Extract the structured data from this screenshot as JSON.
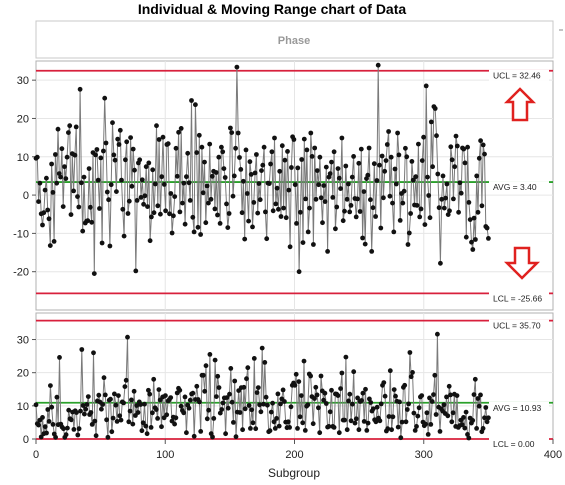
{
  "title": "Individual & Moving Range chart of Data",
  "phase_label": "Phase",
  "xlabel": "Subgroup",
  "colors": {
    "center_line": "#2aa02a",
    "limit_line": "#d8203c",
    "arrow": "#e0211f",
    "data_line": "#7a7a7a",
    "point": "#111111",
    "grid": "#e6e6e6"
  },
  "chart_data": [
    {
      "type": "line",
      "name": "individual",
      "x_range": [
        0,
        350
      ],
      "xlim": [
        0,
        400
      ],
      "ylim": [
        -30,
        35
      ],
      "yticks": [
        -20,
        -10,
        0,
        10,
        20,
        30
      ],
      "y_tick_labels": [
        "-20",
        "-10",
        "0",
        "10",
        "20",
        "30"
      ],
      "ucl": 32.46,
      "avg": 3.4,
      "lcl": -25.66,
      "ucl_label": "UCL = 32.46",
      "avg_label": "AVG = 3.40",
      "lcl_label": "LCL = -25.66",
      "values": [
        9.6,
        9.9,
        -1.7,
        3.1,
        -4.9,
        -7.8,
        -4.6,
        1.3,
        4.4,
        -3.9,
        -6.2,
        -13.2,
        8.1,
        0.7,
        -12.1,
        10.6,
        3.1,
        17.2,
        5.6,
        4.7,
        12.1,
        -3.0,
        7.4,
        4.3,
        9.9,
        16.3,
        18.1,
        -5.1,
        10.8,
        1.1,
        10.4,
        17.8,
        -0.4,
        -3.1,
        27.6,
        3.2,
        -9.4,
        4.7,
        -7.3,
        -6.8,
        -6.7,
        6.9,
        -3.2,
        -7.1,
        11.1,
        -20.5,
        10.5,
        11.9,
        3.9,
        -3.5,
        9.7,
        -12.5,
        11.5,
        25.3,
        13.6,
        0.8,
        -1.2,
        -13.3,
        2.7,
        18.9,
        10.5,
        9.1,
        0.9,
        14.6,
        13.2,
        16.9,
        3.9,
        -3.7,
        -10.7,
        9.2,
        13.9,
        -4.8,
        -1.6,
        15.0,
        2.3,
        12.0,
        6.5,
        -19.8,
        -1.4,
        8.4,
        9.2,
        -0.6,
        4.0,
        -2.4,
        -0.2,
        7.4,
        -3.0,
        8.4,
        -11.9,
        -5.7,
        6.6,
        -4.6,
        2.9,
        18.1,
        -2.8,
        14.5,
        -5.0,
        4.8,
        15.1,
        2.8,
        -4.1,
        13.2,
        13.4,
        -4.9,
        0.4,
        -9.9,
        -5.4,
        -0.4,
        12.2,
        4.9,
        16.4,
        -4.4,
        17.4,
        -2.1,
        3.1,
        -7.6,
        4.8,
        10.9,
        3.2,
        -1.4,
        24.7,
        -5.8,
        -9.6,
        23.6,
        11.1,
        -8.4,
        15.6,
        -10.3,
        12.5,
        0.6,
        8.6,
        -7.2,
        2.4,
        -2.1,
        13.3,
        -1.1,
        4.9,
        6.2,
        -3.6,
        5.9,
        -5.2,
        9.9,
        -7.4,
        12.5,
        11.3,
        6.9,
        4.6,
        -2.3,
        -8.5,
        -4.8,
        17.5,
        16.3,
        -0.3,
        5.0,
        12.2,
        33.4,
        16.2,
        9.8,
        6.7,
        -4.6,
        3.6,
        -11.5,
        11.8,
        0.4,
        -6.8,
        8.7,
        5.4,
        -8.3,
        -1.9,
        5.8,
        10.6,
        -4.7,
        3.0,
        -1.2,
        6.4,
        7.8,
        12.5,
        -4.4,
        -11.4,
        3.1,
        3.0,
        8.1,
        11.3,
        -4.1,
        14.9,
        -2.3,
        1.8,
        -3.7,
        6.2,
        -5.6,
        12.9,
        -3.4,
        9.1,
        -5.9,
        11.4,
        1.3,
        -13.5,
        7.2,
        15.2,
        14.5,
        2.7,
        -7.4,
        7.1,
        -20.0,
        -4.5,
        9.3,
        -12.4,
        14.6,
        -1.0,
        11.8,
        -9.6,
        -3.4,
        16.2,
        10.1,
        -12.9,
        12.3,
        -1.1,
        6.4,
        2.7,
        9.9,
        -0.7,
        -7.2,
        2.5,
        -1.7,
        7.3,
        -14.7,
        4.7,
        5.6,
        8.6,
        -0.6,
        11.3,
        -8.8,
        -3.1,
        6.9,
        4.4,
        1.7,
        14.9,
        -6.7,
        -4.2,
        7.6,
        -1.1,
        2.9,
        -4.4,
        -2.7,
        4.7,
        10.1,
        -0.9,
        -5.7,
        -1.0,
        8.3,
        -4.3,
        12.0,
        -11.2,
        0.9,
        -12.8,
        4.3,
        5.2,
        12.3,
        -1.2,
        -14.7,
        -3.3,
        8.2,
        -5.6,
        3.8,
        33.9,
        7.8,
        -8.6,
        10.2,
        -0.7,
        6.2,
        9.0,
        13.2,
        16.6,
        -0.3,
        9.9,
        -2.1,
        -9.6,
        6.8,
        2.9,
        16.2,
        10.5,
        -6.6,
        0.4,
        -2.1,
        1.0,
        12.2,
        10.0,
        -12.9,
        -9.9,
        -4.8,
        8.8,
        3.9,
        -2.6,
        4.8,
        -2.7,
        13.3,
        -5.7,
        -3.6,
        9.0,
        15.1,
        -7.7,
        28.5,
        4.7,
        -0.1,
        -5.9,
        19.1,
        7.4,
        23.1,
        22.6,
        15.5,
        5.5,
        -3.3,
        -17.8,
        -1.1,
        5.0,
        -3.4,
        -0.8,
        2.9,
        -5.1,
        -4.1,
        12.6,
        9.2,
        -1.0,
        7.4,
        15.4,
        12.8,
        -4.5,
        3.2,
        0.5,
        12.3,
        12.0,
        8.4,
        -11.0,
        12.5,
        -1.9,
        -6.4,
        -12.3,
        -14.2,
        -6.0,
        -11.6,
        5.0,
        -4.5,
        9.6,
        14.2,
        -2.8,
        13.1,
        10.7,
        -8.2,
        -8.6,
        -11.3
      ]
    },
    {
      "type": "line",
      "name": "moving-range",
      "x_range": [
        0,
        350
      ],
      "xlim": [
        0,
        400
      ],
      "ylim": [
        0,
        38
      ],
      "yticks": [
        0,
        10,
        20,
        30
      ],
      "y_tick_labels": [
        "0",
        "10",
        "20",
        "30"
      ],
      "ucl": 35.7,
      "avg": 10.93,
      "lcl": 0.0,
      "ucl_label": "UCL = 35.70",
      "avg_label": "AVG = 10.93",
      "lcl_label": "LCL = 0.00",
      "values": [
        10.3,
        4.6,
        4.2,
        5.7,
        0.6,
        6.5,
        1.6,
        3.7,
        1.8,
        8.9,
        5.3,
        16.1,
        9.6,
        4.4,
        1.5,
        0.5,
        12.6,
        4.3,
        24.6,
        4.5,
        3.6,
        3.1,
        0.5,
        1.3,
        3.3,
        8.7,
        6.1,
        5.8,
        8.1,
        2.9,
        8.5,
        8.0,
        1.2,
        3.1,
        8.4,
        27.0,
        10.1,
        7.5,
        9.0,
        10.4,
        12.8,
        7.4,
        8.0,
        4.4,
        26.0,
        5.4,
        1.0,
        11.5,
        13.2,
        11.1,
        9.0,
        10.4,
        18.5,
        13.3,
        5.8,
        0.5,
        11.7,
        12.0,
        2.2,
        6.3,
        13.6,
        10.2,
        5.3,
        13.1,
        7.0,
        5.7,
        11.2,
        10.9,
        15.8,
        17.7,
        30.7,
        5.2,
        8.4,
        11.8,
        4.5,
        14.4,
        7.1,
        10.1,
        8.0,
        11.2,
        10.4,
        2.5,
        4.9,
        10.5,
        3.9,
        1.6,
        14.7,
        13.5,
        3.5,
        7.9,
        18.0,
        9.4,
        8.9,
        6.2,
        14.9,
        11.8,
        3.7,
        12.7,
        6.4,
        13.1,
        7.3,
        11.5,
        11.9,
        12.5,
        5.4,
        6.6,
        4.5,
        6.4,
        13.9,
        15.3,
        14.7,
        9.9,
        8.6,
        7.9,
        12.7,
        1.9,
        10.2,
        9.3,
        11.7,
        13.6,
        13.8,
        0.8,
        11.9,
        15.9,
        11.9,
        11.2,
        2.3,
        19.2,
        19.2,
        14.4,
        22.1,
        6.1,
        8.7,
        25.5,
        1.6,
        0.6,
        6.2,
        23.8,
        12.8,
        18.9,
        15.5,
        7.8,
        8.9,
        10.9,
        12.4,
        1.6,
        12.5,
        9.3,
        13.5,
        21.3,
        11.1,
        5.0,
        17.5,
        0.7,
        8.1,
        14.6,
        8.0,
        15.5,
        2.8,
        15.6,
        9.1,
        18.2,
        21.5,
        10.1,
        3.2,
        8.8,
        4.9,
        24.3,
        3.1,
        14.0,
        15.5,
        10.3,
        8.2,
        27.4,
        10.5,
        23.1,
        12.6,
        10.2,
        2.2,
        2.5,
        8.1,
        10.8,
        5.2,
        3.2,
        6.2,
        13.6,
        3.9,
        10.6,
        12.1,
        14.8,
        11.3,
        5.1,
        3.4,
        5.2,
        3.5,
        9.7,
        16.2,
        16.9,
        16.2,
        19.5,
        3.2,
        17.3,
        6.7,
        13.1,
        4.9,
        23.5,
        2.6,
        9.9,
        10.3,
        19.6,
        19.0,
        12.8,
        4.6,
        12.2,
        15.6,
        13.3,
        9.4,
        1.9,
        19.0,
        14.5,
        11.7,
        13.8,
        10.7,
        3.6,
        3.8,
        8.2,
        14.7,
        3.8,
        3.5,
        13.6,
        13.5,
        13.1,
        1.9,
        15.2,
        19.9,
        5.7,
        5.7,
        24.7,
        2.8,
        11.5,
        13.5,
        5.5,
        10.5,
        20.3,
        4.8,
        6.1,
        12.4,
        2.8,
        11.3,
        11.6,
        13.8,
        5.3,
        15.0,
        2.6,
        4.8,
        12.1,
        11.0,
        8.4,
        9.1,
        5.8,
        5.2,
        9.6,
        6.3,
        5.5,
        10.6,
        16.2,
        17.0,
        12.9,
        2.4,
        3.1,
        6.8,
        20.6,
        2.8,
        6.7,
        14.9,
        12.9,
        11.4,
        3.6,
        11.2,
        0.4,
        5.1,
        15.6,
        16.2,
        5.2,
        8.9,
        10.6,
        26.1,
        18.8,
        20.1,
        7.8,
        2.6,
        3.8,
        6.9,
        9.4,
        12.7,
        13.1,
        5.1,
        4.0,
        4.5,
        7.9,
        1.4,
        12.4,
        4.4,
        11.3,
        13.4,
        19.2,
        7.4,
        31.6,
        9.6,
        2.3,
        9.1,
        8.4,
        10.3,
        7.7,
        12.7,
        7.0,
        15.9,
        13.3,
        5.2,
        7.9,
        13.5,
        3.8,
        13.1,
        3.5,
        4.0,
        5.7,
        4.3,
        6.5,
        3.3,
        8.1,
        1.4,
        0.3,
        6.3,
        4.8,
        5.6,
        13.4,
        18.0,
        3.2,
        12.2,
        9.9,
        13.3,
        2.2,
        3.2,
        6.4,
        9.5,
        5.2,
        6.4
      ]
    }
  ],
  "x_axis": {
    "ticks": [
      0,
      100,
      200,
      300,
      400
    ],
    "tick_labels": [
      "0",
      "100",
      "200",
      "300",
      "400"
    ]
  }
}
